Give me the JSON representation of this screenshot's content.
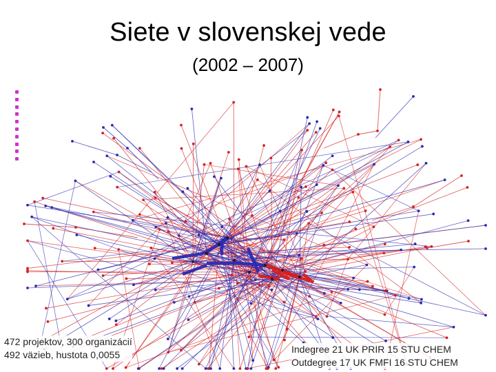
{
  "slide": {
    "title": "Siete v slovenskej vede",
    "subtitle": "(2002 – 2007)"
  },
  "captions": {
    "left_line1": "472 projektov,  300 organizácií",
    "left_line2": "492 väzieb, hustota 0,0055",
    "right_line1": "Indegree 21 UK PRIR 15 STU CHEM",
    "right_line2": "Outdegree 17 UK FMFI 16 STU CHEM"
  },
  "colors": {
    "red_edges": "#d42020",
    "blue_edges": "#2a2ab0",
    "legend_marker": "#cc33cc"
  }
}
